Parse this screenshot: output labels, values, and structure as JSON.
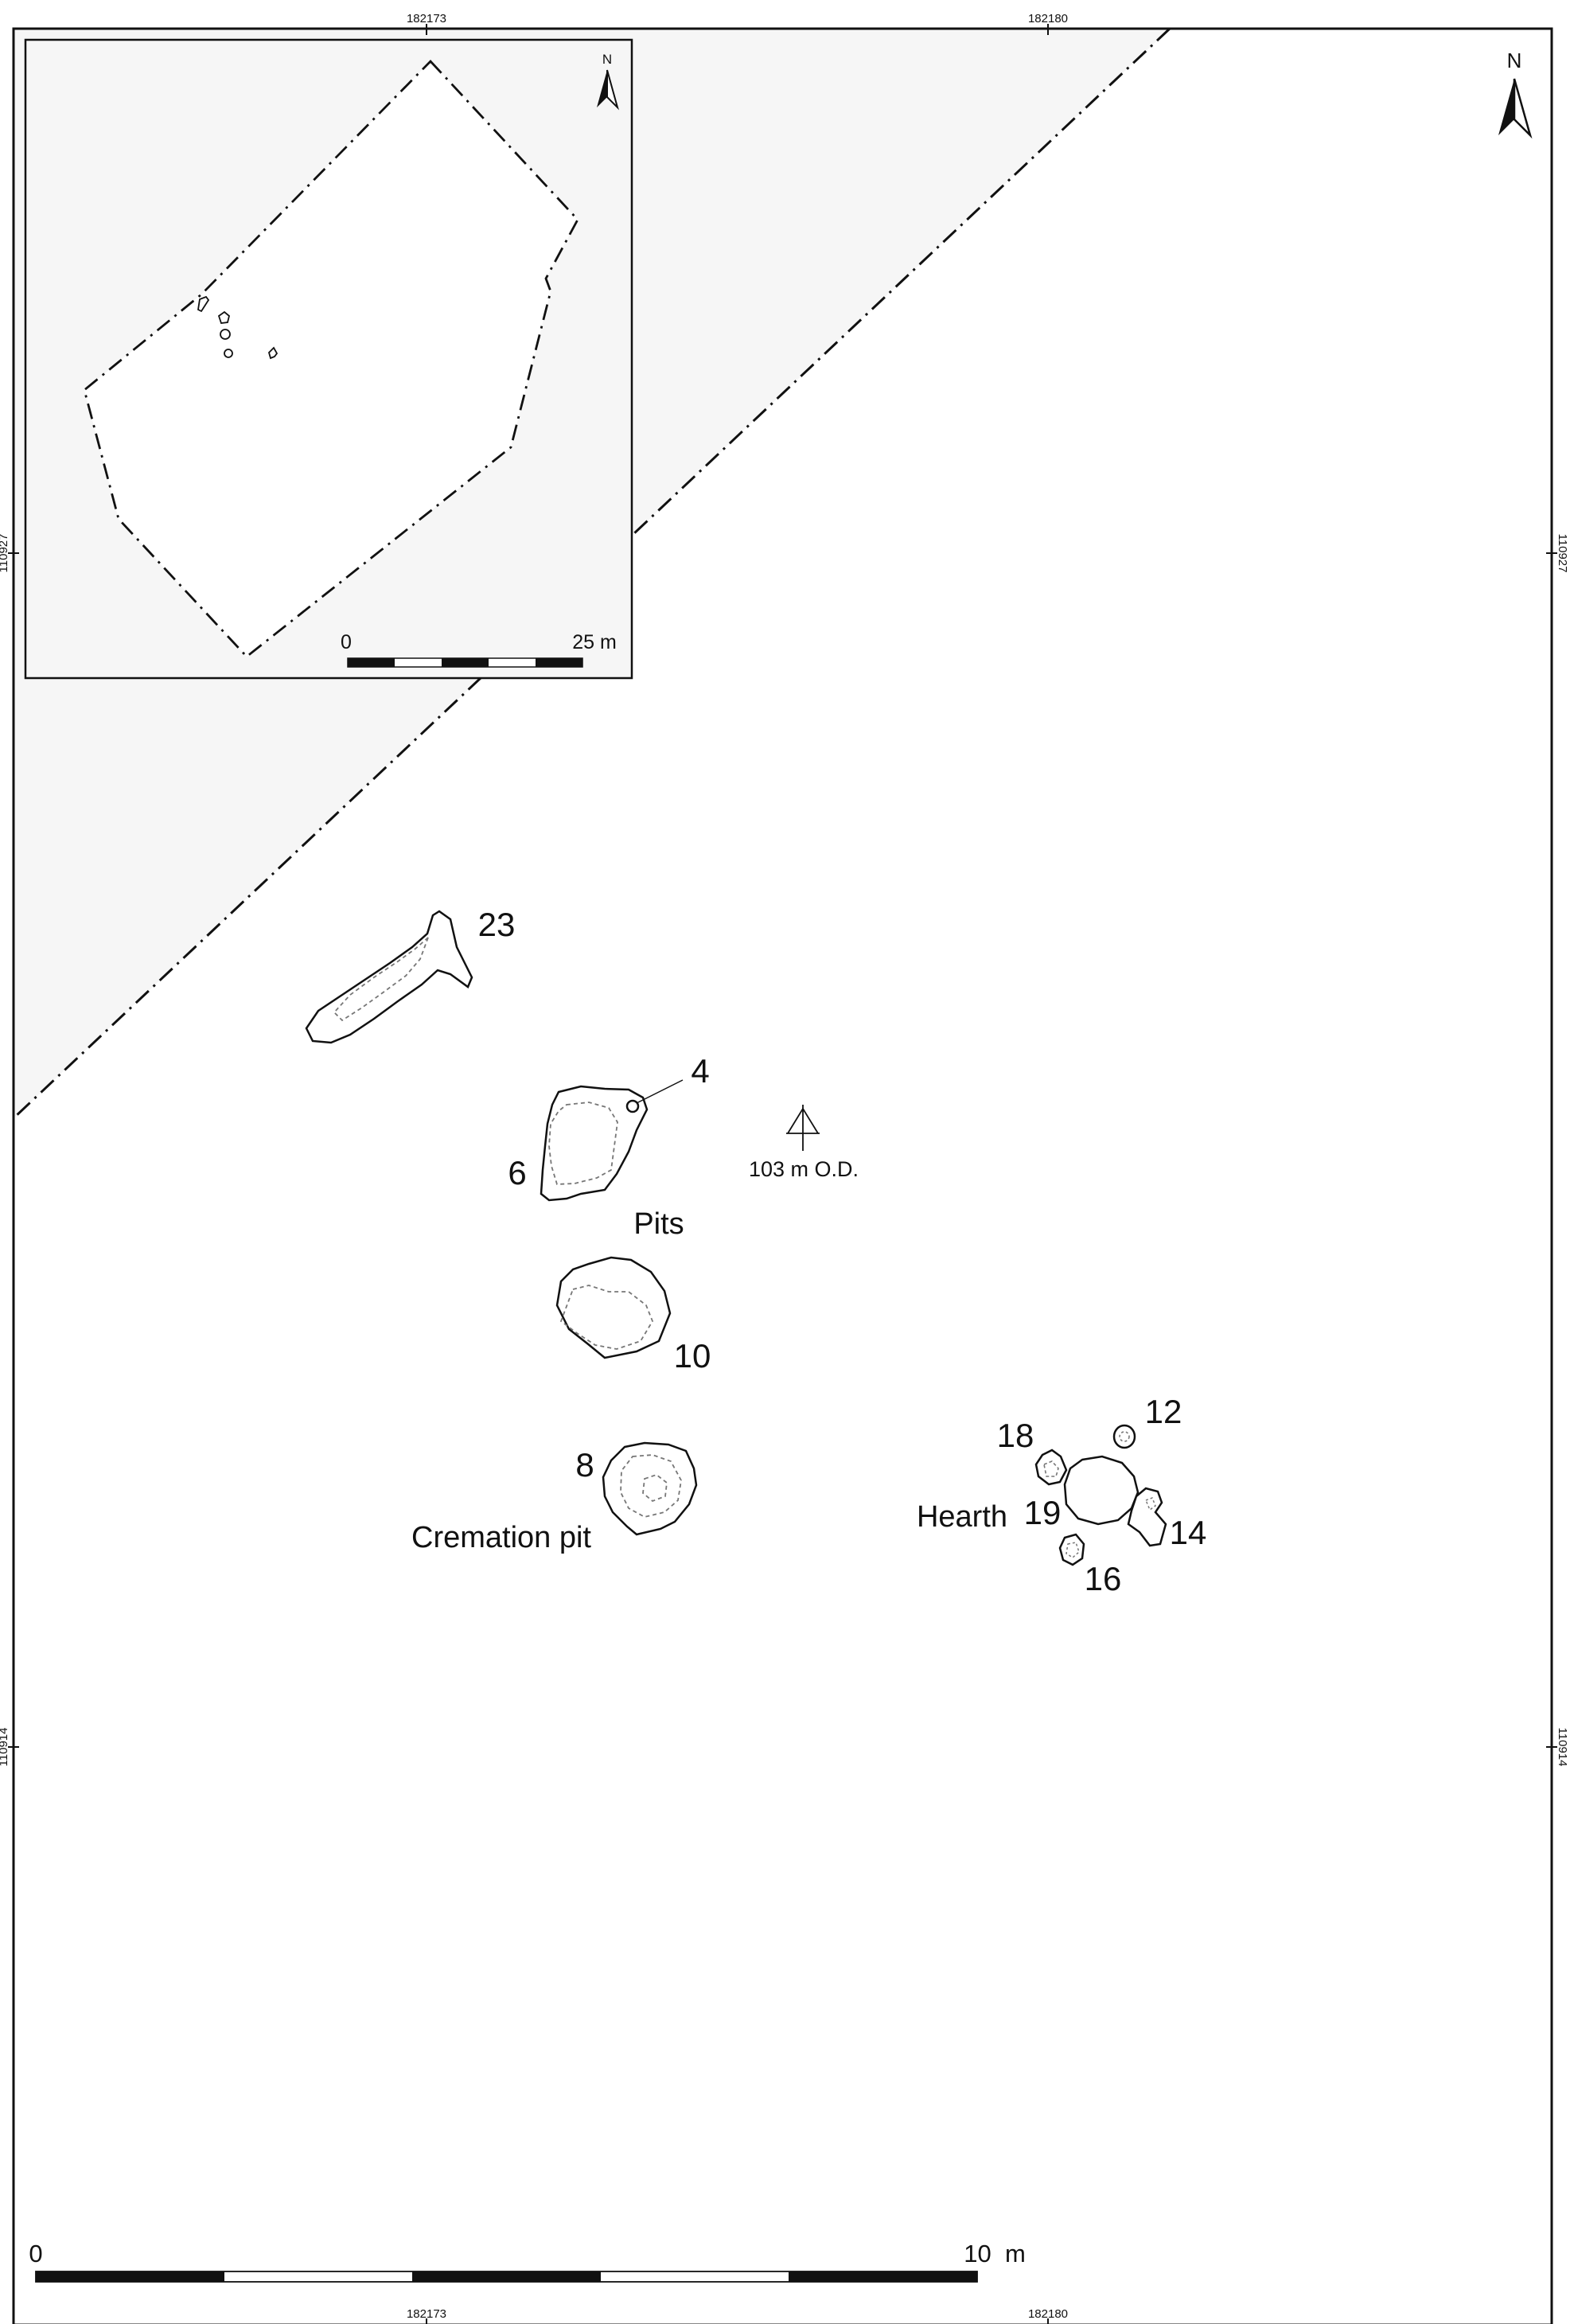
{
  "grid": {
    "easting_a": "182173",
    "easting_b": "182180",
    "northing_a": "110927",
    "northing_b": "110914"
  },
  "north_arrow": {
    "label": "N"
  },
  "inset": {
    "north_label": "N",
    "scale": {
      "start": "0",
      "end": "25 m"
    }
  },
  "features": [
    {
      "id": "23",
      "label": "23"
    },
    {
      "id": "4",
      "label": "4"
    },
    {
      "id": "6",
      "label": "6"
    },
    {
      "id": "10",
      "label": "10"
    },
    {
      "id": "8",
      "label": "8"
    },
    {
      "id": "18",
      "label": "18"
    },
    {
      "id": "12",
      "label": "12"
    },
    {
      "id": "19",
      "label": "19"
    },
    {
      "id": "14",
      "label": "14"
    },
    {
      "id": "16",
      "label": "16"
    }
  ],
  "group_labels": {
    "pits": "Pits",
    "cremation_pit": "Cremation pit",
    "hearth": "Hearth"
  },
  "spot_height": {
    "label": "103 m O.D.",
    "icon": "spot-height-icon"
  },
  "scale_bar": {
    "start": "0",
    "end": "10  m",
    "segments": 5
  },
  "colors": {
    "outside_area": "#f6f6f6",
    "line": "#111111",
    "dashed_fill_line": "#777777"
  }
}
